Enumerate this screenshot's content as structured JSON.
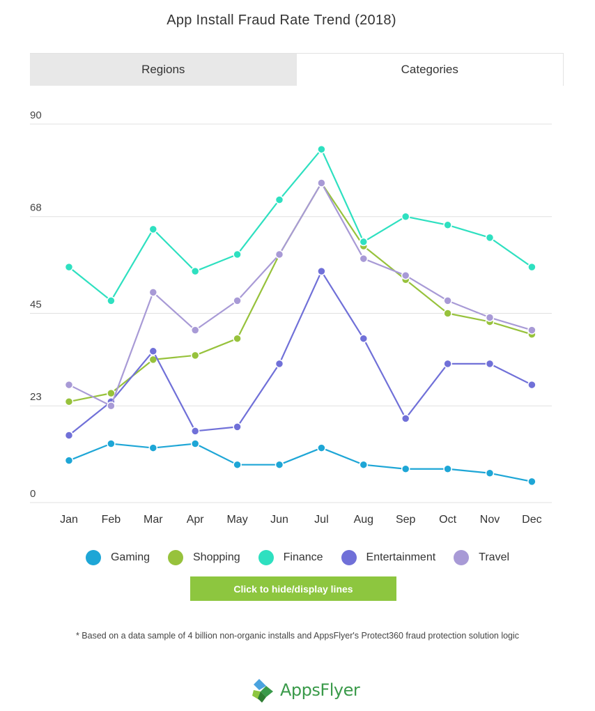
{
  "title": "App Install Fraud Rate Trend (2018)",
  "tabs": [
    {
      "label": "Regions",
      "active": false
    },
    {
      "label": "Categories",
      "active": true
    }
  ],
  "chart_data": {
    "type": "line",
    "x": [
      "Jan",
      "Feb",
      "Mar",
      "Apr",
      "May",
      "Jun",
      "Jul",
      "Aug",
      "Sep",
      "Oct",
      "Nov",
      "Dec"
    ],
    "yticks": [
      "0",
      "23",
      "45",
      "68",
      "90"
    ],
    "ylim": [
      0,
      90
    ],
    "grid": true,
    "legend_position": "bottom",
    "series": [
      {
        "name": "Gaming",
        "color": "#1ea6d6",
        "values": [
          10,
          14,
          13,
          14,
          9,
          9,
          13,
          9,
          8,
          8,
          7,
          5
        ]
      },
      {
        "name": "Shopping",
        "color": "#97c23c",
        "values": [
          24,
          26,
          34,
          35,
          39,
          59,
          76,
          61,
          53,
          45,
          43,
          40
        ]
      },
      {
        "name": "Finance",
        "color": "#2ee0c0",
        "values": [
          56,
          48,
          65,
          55,
          59,
          72,
          84,
          62,
          68,
          66,
          63,
          56
        ]
      },
      {
        "name": "Entertainment",
        "color": "#7070d8",
        "values": [
          16,
          24,
          36,
          17,
          18,
          33,
          55,
          39,
          20,
          33,
          33,
          28
        ]
      },
      {
        "name": "Travel",
        "color": "#a89ad6",
        "values": [
          28,
          23,
          50,
          41,
          48,
          59,
          76,
          58,
          54,
          48,
          44,
          41
        ]
      }
    ]
  },
  "toggle_button": {
    "label": "Click to hide/display lines"
  },
  "footnote": "* Based on a data sample of 4 billion non-organic installs and AppsFlyer's Protect360 fraud protection solution logic",
  "logo": {
    "text": "AppsFlyer"
  }
}
